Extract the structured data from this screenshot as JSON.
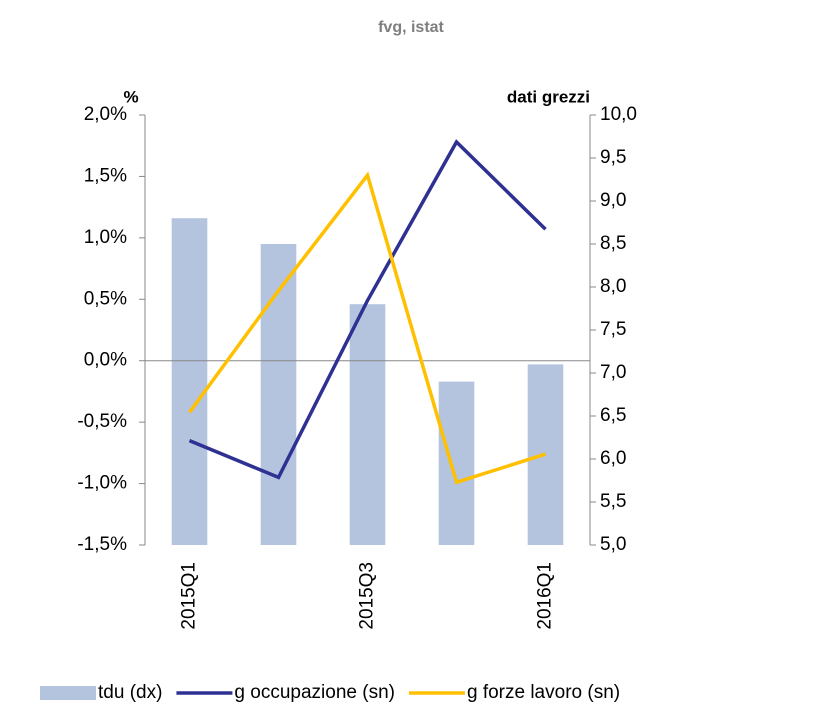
{
  "chart_data": {
    "type": "bar",
    "title": "fvg, istat",
    "y_label": "%",
    "y2_label": "dati grezzi",
    "categories": [
      "2015Q1",
      null,
      "2015Q3",
      null,
      "2016Q1"
    ],
    "series": [
      {
        "name": "tdu (dx)",
        "type": "bar",
        "axis": "y2",
        "color": "#b4c3de",
        "values": [
          8.8,
          8.5,
          7.8,
          6.9,
          7.1
        ]
      },
      {
        "name": "g occupazione (sn)",
        "type": "line",
        "color": "#2e3192",
        "values": [
          -0.65,
          -0.95,
          0.49,
          1.78,
          1.07
        ]
      },
      {
        "name": "g forze lavoro (sn)",
        "type": "line",
        "color": "#ffc000",
        "values": [
          -0.42,
          0.57,
          1.51,
          -0.99,
          -0.76
        ]
      }
    ],
    "ylim": [
      -1.5,
      2.0
    ],
    "yticks": [
      {
        "value": -1.5,
        "label": "-1,5%"
      },
      {
        "value": -1.0,
        "label": "-1,0%"
      },
      {
        "value": -0.5,
        "label": "-0,5%"
      },
      {
        "value": 0,
        "label": "0,0%"
      },
      {
        "value": 0.5,
        "label": "0,5%"
      },
      {
        "value": 1.0,
        "label": "1,0%"
      },
      {
        "value": 1.5,
        "label": "1,5%"
      },
      {
        "value": 2.0,
        "label": "2,0%"
      }
    ],
    "y2lim": [
      5.0,
      10.0
    ],
    "y2ticks": [
      {
        "value": 5.0,
        "label": "5,0"
      },
      {
        "value": 5.5,
        "label": "5,5"
      },
      {
        "value": 6.0,
        "label": "6,0"
      },
      {
        "value": 6.5,
        "label": "6,5"
      },
      {
        "value": 7.0,
        "label": "7,0"
      },
      {
        "value": 7.5,
        "label": "7,5"
      },
      {
        "value": 8.0,
        "label": "8,0"
      },
      {
        "value": 8.5,
        "label": "8,5"
      },
      {
        "value": 9.0,
        "label": "9,0"
      },
      {
        "value": 9.5,
        "label": "9,5"
      },
      {
        "value": 10.0,
        "label": "10,0"
      }
    ]
  }
}
